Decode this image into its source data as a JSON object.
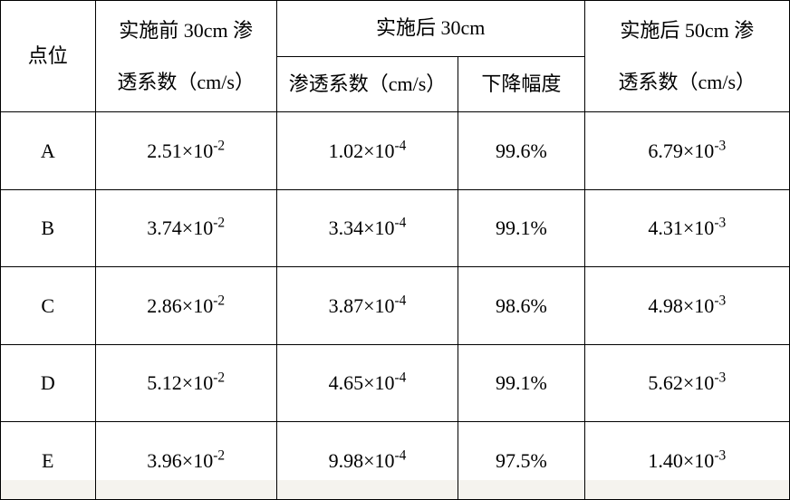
{
  "table": {
    "type": "table",
    "background_color": "#ffffff",
    "border_color": "#000000",
    "text_color": "#000000",
    "font_size_pt": 16,
    "columns": {
      "point": {
        "label": "点位"
      },
      "before30": {
        "label_line1": "实施前 30cm 渗",
        "label_line2": "透系数（cm/s）"
      },
      "after30_group": {
        "label": "实施后 30cm"
      },
      "after30_coef": {
        "label": "渗透系数（cm/s）"
      },
      "after30_drop": {
        "label": "下降幅度"
      },
      "after50": {
        "label_line1": "实施后 50cm 渗",
        "label_line2": "透系数（cm/s）"
      }
    },
    "rows": [
      {
        "point": "A",
        "before30": {
          "base": "2.51",
          "exp": "-2"
        },
        "after30_coef": {
          "base": "1.02",
          "exp": "-4"
        },
        "after30_drop": "99.6%",
        "after50": {
          "base": "6.79",
          "exp": "-3"
        }
      },
      {
        "point": "B",
        "before30": {
          "base": "3.74",
          "exp": "-2"
        },
        "after30_coef": {
          "base": "3.34",
          "exp": "-4"
        },
        "after30_drop": "99.1%",
        "after50": {
          "base": "4.31",
          "exp": "-3"
        }
      },
      {
        "point": "C",
        "before30": {
          "base": "2.86",
          "exp": "-2"
        },
        "after30_coef": {
          "base": "3.87",
          "exp": "-4"
        },
        "after30_drop": "98.6%",
        "after50": {
          "base": "4.98",
          "exp": "-3"
        }
      },
      {
        "point": "D",
        "before30": {
          "base": "5.12",
          "exp": "-2"
        },
        "after30_coef": {
          "base": "4.65",
          "exp": "-4"
        },
        "after30_drop": "99.1%",
        "after50": {
          "base": "5.62",
          "exp": "-3"
        }
      },
      {
        "point": "E",
        "before30": {
          "base": "3.96",
          "exp": "-2"
        },
        "after30_coef": {
          "base": "9.98",
          "exp": "-4"
        },
        "after30_drop": "97.5%",
        "after50": {
          "base": "1.40",
          "exp": "-3"
        }
      }
    ]
  }
}
